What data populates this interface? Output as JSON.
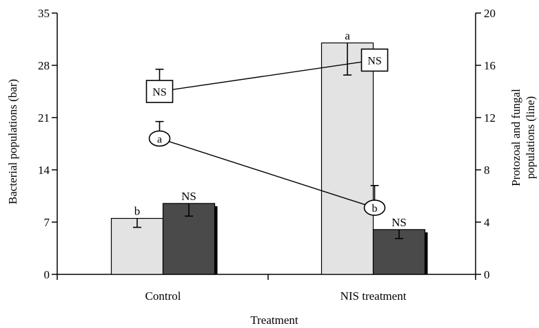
{
  "chart_data": {
    "type": "bar",
    "xlabel": "Treatment",
    "ylabel_left": "Bacterial populations (bar)",
    "ylabel_right_line1": "Protozoal and fungal",
    "ylabel_right_line2": "populations (line)",
    "categories": [
      "Control",
      "NIS treatment"
    ],
    "ylim_left": [
      0,
      35
    ],
    "yticks_left": [
      0,
      7,
      14,
      21,
      28,
      35
    ],
    "ylim_right": [
      0,
      20
    ],
    "yticks_right": [
      0,
      4,
      8,
      12,
      16,
      20
    ],
    "bar_series": [
      {
        "color": "#e3e3e3",
        "values": [
          7.5,
          31.0
        ],
        "errors": [
          1.2,
          4.3
        ],
        "letters": [
          "b",
          "a"
        ]
      },
      {
        "color": "#4a4a4a",
        "values": [
          9.5,
          6.0
        ],
        "errors": [
          1.7,
          1.2
        ],
        "letters": [
          "NS",
          "NS"
        ]
      }
    ],
    "line_series": [
      {
        "marker": "square",
        "values": [
          14.0,
          16.4
        ],
        "errors": [
          1.7,
          0
        ],
        "labels": [
          "NS",
          "NS"
        ]
      },
      {
        "marker": "ellipse",
        "values": [
          10.4,
          5.1
        ],
        "errors": [
          1.3,
          1.7
        ],
        "labels": [
          "a",
          "b"
        ]
      }
    ]
  }
}
